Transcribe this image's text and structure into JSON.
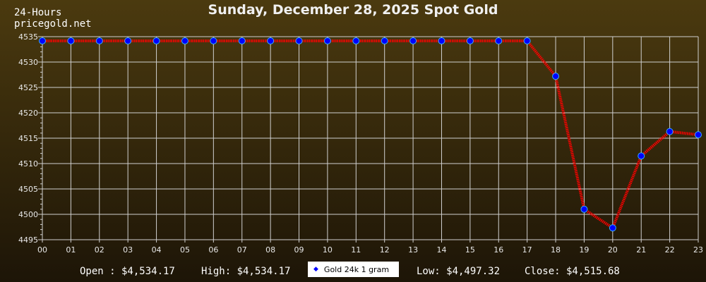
{
  "header": {
    "subtitle_1": "24-Hours",
    "subtitle_2": "pricegold.net"
  },
  "stats": {
    "open": "Open : $4,534.17",
    "high": "High: $4,534.17",
    "low": "Low: $4,497.32",
    "close": "Close: $4,515.68"
  },
  "colors": {
    "line": "#ff0000",
    "marker": "#0000ff",
    "marker_edge": "#33aaff",
    "grid": "#d0d0d0"
  },
  "chart_data": {
    "type": "line",
    "title": "Sunday, December 28, 2025 Spot Gold",
    "x": [
      "00",
      "01",
      "02",
      "03",
      "04",
      "05",
      "06",
      "07",
      "08",
      "09",
      "10",
      "11",
      "12",
      "13",
      "14",
      "15",
      "16",
      "17",
      "18",
      "19",
      "20",
      "21",
      "22",
      "23"
    ],
    "series": [
      {
        "name": "Gold 24k 1 gram",
        "values": [
          4534.17,
          4534.17,
          4534.17,
          4534.17,
          4534.17,
          4534.17,
          4534.17,
          4534.17,
          4534.17,
          4534.17,
          4534.17,
          4534.17,
          4534.17,
          4534.17,
          4534.17,
          4534.17,
          4534.17,
          4534.17,
          4527.2,
          4501.0,
          4497.32,
          4511.5,
          4516.3,
          4515.68
        ]
      }
    ],
    "yticks": [
      4495,
      4500,
      4505,
      4510,
      4515,
      4520,
      4525,
      4530,
      4535
    ],
    "ylim": [
      4495,
      4535
    ],
    "grid": true,
    "legend": "bottom-center"
  }
}
